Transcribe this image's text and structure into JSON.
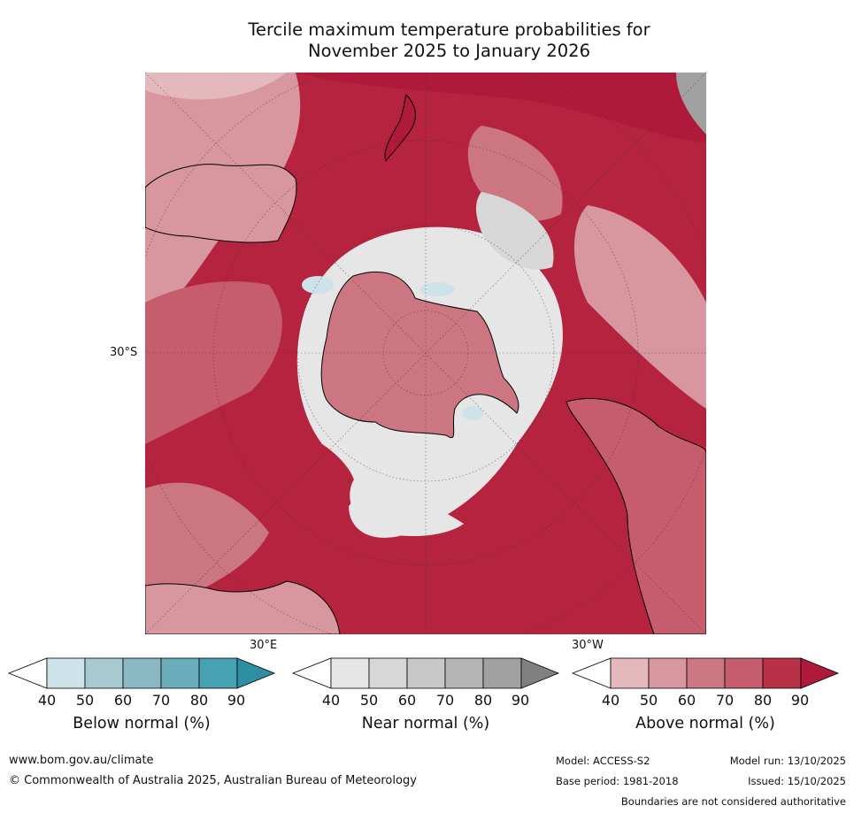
{
  "title": {
    "line1": "Tercile maximum temperature probabilities for",
    "line2": "November 2025 to January 2026"
  },
  "map": {
    "projection": "south-polar-stereographic",
    "lat_label": "30°S",
    "lon_label_east": "30°E",
    "lon_label_west": "30°W"
  },
  "legends": [
    {
      "label": "Below normal (%)",
      "ticks": [
        "40",
        "50",
        "60",
        "70",
        "80",
        "90"
      ],
      "colors": [
        "#ffffff",
        "#cde3e9",
        "#a8c9d0",
        "#8ab8c4",
        "#6badbb",
        "#48a1b2",
        "#2e8ea3"
      ]
    },
    {
      "label": "Near normal (%)",
      "ticks": [
        "40",
        "50",
        "60",
        "70",
        "80",
        "90"
      ],
      "colors": [
        "#ffffff",
        "#e6e6e6",
        "#d7d7d7",
        "#c8c8c8",
        "#b5b5b5",
        "#a1a1a1",
        "#808080"
      ]
    },
    {
      "label": "Above normal (%)",
      "ticks": [
        "40",
        "50",
        "60",
        "70",
        "80",
        "90"
      ],
      "colors": [
        "#ffffff",
        "#e4b9be",
        "#d8979e",
        "#cb7681",
        "#c55d6c",
        "#b93147",
        "#b01a3a"
      ]
    }
  ],
  "footer": {
    "website": "www.bom.gov.au/climate",
    "copyright": "© Commonwealth of Australia 2025, Australian Bureau of Meteorology",
    "model": "Model: ACCESS-S2",
    "base_period": "Base period: 1981-2018",
    "model_run": "Model run: 13/10/2025",
    "issued": "Issued: 15/10/2025",
    "disclaimer": "Boundaries are not considered authoritative"
  }
}
